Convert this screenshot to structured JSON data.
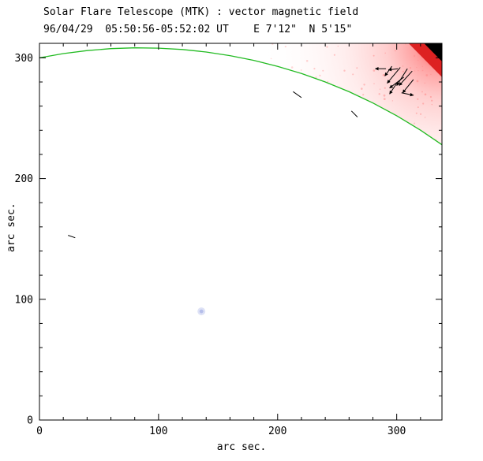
{
  "chart_data": {
    "type": "scatter",
    "title": "Solar Flare Telescope (MTK) : vector magnetic field",
    "subtitle": "96/04/29  05:50:56-05:52:02 UT    E 7'12\"  N 5'15\"",
    "xlabel": "arc sec.",
    "ylabel": "arc sec.",
    "xlim": [
      0,
      338
    ],
    "ylim": [
      0,
      312
    ],
    "xticks": [
      0,
      100,
      200,
      300
    ],
    "yticks": [
      0,
      100,
      200,
      300
    ],
    "minor_tick_step": 20,
    "grid": false,
    "limb_color": "#22bb22",
    "limb_curve": [
      [
        0,
        300.0
      ],
      [
        20,
        303.5
      ],
      [
        40,
        306.0
      ],
      [
        60,
        307.6
      ],
      [
        80,
        308.3
      ],
      [
        100,
        308.0
      ],
      [
        120,
        306.9
      ],
      [
        140,
        304.8
      ],
      [
        160,
        301.8
      ],
      [
        180,
        297.9
      ],
      [
        200,
        292.9
      ],
      [
        220,
        287.0
      ],
      [
        240,
        280.0
      ],
      [
        260,
        271.9
      ],
      [
        280,
        262.6
      ],
      [
        300,
        252.0
      ],
      [
        320,
        240.1
      ],
      [
        338,
        228.0
      ]
    ],
    "plage_region": {
      "description": "pink emission shading above solar limb in upper-right corner",
      "gradient_colors": [
        "#cc2020",
        "#ff5a5a",
        "#ff9a9a",
        "#ffc2c2",
        "#ffdede",
        "#fff1f1",
        "#ffffff"
      ]
    },
    "corner_red": {
      "color": "#dd2222",
      "points": [
        [
          338,
          312
        ],
        [
          310,
          312
        ],
        [
          338,
          284
        ]
      ]
    },
    "corner_triangle": {
      "color": "#000000",
      "points": [
        [
          338,
          312
        ],
        [
          323,
          312
        ],
        [
          338,
          297
        ]
      ]
    },
    "vectors": [
      [
        291,
        291,
        -9,
        0
      ],
      [
        301,
        291,
        -8,
        -1
      ],
      [
        296,
        293,
        -6,
        -8
      ],
      [
        303,
        292,
        -11,
        -13
      ],
      [
        309,
        291,
        -9,
        -14
      ],
      [
        313,
        289,
        -11,
        -12
      ],
      [
        306,
        284,
        -12,
        -9
      ],
      [
        314,
        282,
        -9,
        -11
      ],
      [
        300,
        279,
        -6,
        -9
      ],
      [
        304,
        271,
        10,
        -2
      ]
    ],
    "dashes": [
      [
        213,
        272,
        220,
        267
      ],
      [
        262,
        256,
        267,
        251
      ],
      [
        24,
        153,
        30,
        151
      ]
    ],
    "blue_spot": {
      "x": 136,
      "y": 90,
      "color": "#93a0e0"
    }
  }
}
